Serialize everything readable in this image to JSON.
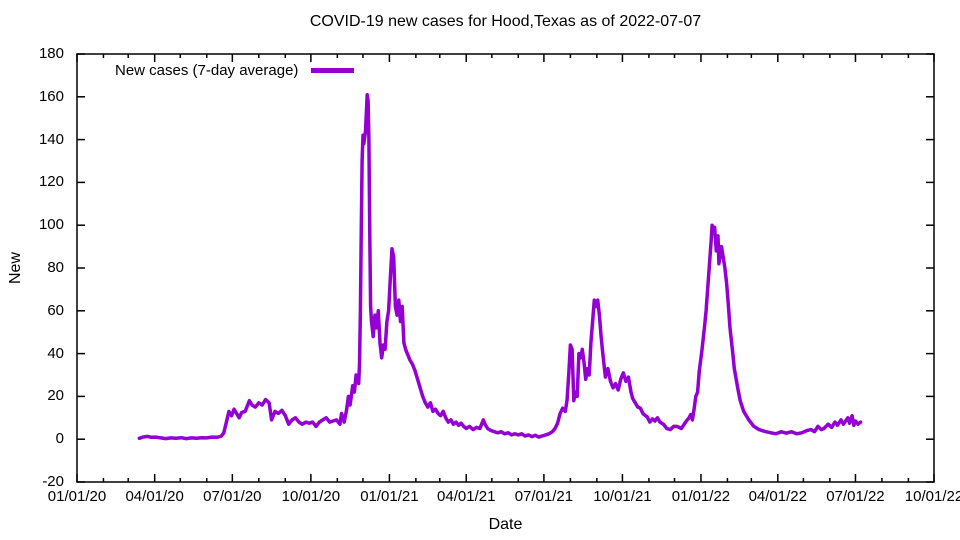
{
  "chart_data": {
    "type": "line",
    "title": "COVID-19 new cases for Hood,Texas as of 2022-07-07",
    "xlabel": "Date",
    "ylabel": "New",
    "legend_label": "New cases (7-day average)",
    "legend_position": "top-left",
    "grid": false,
    "line_color": "#9400d3",
    "axis_color": "#000000",
    "ylim": [
      -20,
      180
    ],
    "y_ticks": [
      -20,
      0,
      20,
      40,
      60,
      80,
      100,
      120,
      140,
      160,
      180
    ],
    "x_range": [
      "2020-01-01",
      "2022-10-01"
    ],
    "x_major_ticks": [
      "2020-01-01",
      "2020-04-01",
      "2020-07-01",
      "2020-10-01",
      "2021-01-01",
      "2021-04-01",
      "2021-07-01",
      "2021-10-01",
      "2022-01-01",
      "2022-04-01",
      "2022-07-01",
      "2022-10-01"
    ],
    "x_tick_labels": [
      "01/01/20",
      "04/01/20",
      "07/01/20",
      "10/01/20",
      "01/01/21",
      "04/01/21",
      "07/01/21",
      "10/01/21",
      "01/01/22",
      "04/01/22",
      "07/01/22",
      "10/01/22"
    ],
    "x_minor_tick_interval": "month",
    "series": [
      {
        "name": "New cases (7-day average)",
        "points": [
          [
            "2020-03-14",
            0.4
          ],
          [
            "2020-03-18",
            1.0
          ],
          [
            "2020-03-24",
            1.3
          ],
          [
            "2020-03-28",
            0.9
          ],
          [
            "2020-04-02",
            1.0
          ],
          [
            "2020-04-08",
            0.6
          ],
          [
            "2020-04-14",
            0.3
          ],
          [
            "2020-04-20",
            0.6
          ],
          [
            "2020-04-26",
            0.4
          ],
          [
            "2020-05-02",
            0.7
          ],
          [
            "2020-05-08",
            0.3
          ],
          [
            "2020-05-14",
            0.6
          ],
          [
            "2020-05-20",
            0.4
          ],
          [
            "2020-05-26",
            0.7
          ],
          [
            "2020-06-01",
            0.6
          ],
          [
            "2020-06-07",
            1.0
          ],
          [
            "2020-06-13",
            0.9
          ],
          [
            "2020-06-18",
            1.4
          ],
          [
            "2020-06-21",
            3
          ],
          [
            "2020-06-24",
            8
          ],
          [
            "2020-06-27",
            13
          ],
          [
            "2020-06-30",
            11
          ],
          [
            "2020-07-03",
            14
          ],
          [
            "2020-07-06",
            12
          ],
          [
            "2020-07-09",
            10
          ],
          [
            "2020-07-12",
            12.5
          ],
          [
            "2020-07-16",
            13
          ],
          [
            "2020-07-21",
            18
          ],
          [
            "2020-07-24",
            16
          ],
          [
            "2020-07-28",
            15
          ],
          [
            "2020-08-01",
            17
          ],
          [
            "2020-08-05",
            16
          ],
          [
            "2020-08-09",
            18.5
          ],
          [
            "2020-08-13",
            17
          ],
          [
            "2020-08-16",
            9
          ],
          [
            "2020-08-20",
            13
          ],
          [
            "2020-08-24",
            12
          ],
          [
            "2020-08-28",
            13.5
          ],
          [
            "2020-09-01",
            11
          ],
          [
            "2020-09-05",
            7
          ],
          [
            "2020-09-09",
            9
          ],
          [
            "2020-09-13",
            10
          ],
          [
            "2020-09-17",
            8
          ],
          [
            "2020-09-21",
            7
          ],
          [
            "2020-09-25",
            8
          ],
          [
            "2020-09-29",
            7.5
          ],
          [
            "2020-10-03",
            8
          ],
          [
            "2020-10-07",
            6
          ],
          [
            "2020-10-11",
            8
          ],
          [
            "2020-10-15",
            9
          ],
          [
            "2020-10-19",
            10
          ],
          [
            "2020-10-23",
            8
          ],
          [
            "2020-10-27",
            8.5
          ],
          [
            "2020-10-31",
            9
          ],
          [
            "2020-11-04",
            7
          ],
          [
            "2020-11-06",
            12
          ],
          [
            "2020-11-09",
            8
          ],
          [
            "2020-11-12",
            14
          ],
          [
            "2020-11-14",
            20
          ],
          [
            "2020-11-16",
            16
          ],
          [
            "2020-11-19",
            25
          ],
          [
            "2020-11-21",
            22
          ],
          [
            "2020-11-23",
            30
          ],
          [
            "2020-11-26",
            26
          ],
          [
            "2020-11-27",
            35
          ],
          [
            "2020-11-28",
            60
          ],
          [
            "2020-11-29",
            95
          ],
          [
            "2020-11-30",
            130
          ],
          [
            "2020-12-01",
            142
          ],
          [
            "2020-12-02",
            138
          ],
          [
            "2020-12-04",
            144
          ],
          [
            "2020-12-06",
            161
          ],
          [
            "2020-12-07",
            158
          ],
          [
            "2020-12-08",
            140
          ],
          [
            "2020-12-09",
            95
          ],
          [
            "2020-12-10",
            62
          ],
          [
            "2020-12-11",
            55
          ],
          [
            "2020-12-13",
            48
          ],
          [
            "2020-12-15",
            58
          ],
          [
            "2020-12-17",
            52
          ],
          [
            "2020-12-19",
            60
          ],
          [
            "2020-12-21",
            45
          ],
          [
            "2020-12-23",
            38
          ],
          [
            "2020-12-25",
            44
          ],
          [
            "2020-12-27",
            42
          ],
          [
            "2020-12-29",
            55
          ],
          [
            "2020-12-31",
            60
          ],
          [
            "2021-01-02",
            75
          ],
          [
            "2021-01-04",
            89
          ],
          [
            "2021-01-06",
            85
          ],
          [
            "2021-01-08",
            62
          ],
          [
            "2021-01-10",
            58
          ],
          [
            "2021-01-12",
            65
          ],
          [
            "2021-01-14",
            55
          ],
          [
            "2021-01-16",
            62
          ],
          [
            "2021-01-18",
            45
          ],
          [
            "2021-01-20",
            42
          ],
          [
            "2021-01-22",
            40
          ],
          [
            "2021-01-25",
            37
          ],
          [
            "2021-01-28",
            35
          ],
          [
            "2021-01-31",
            32
          ],
          [
            "2021-02-03",
            28
          ],
          [
            "2021-02-06",
            24
          ],
          [
            "2021-02-09",
            20
          ],
          [
            "2021-02-12",
            17
          ],
          [
            "2021-02-15",
            15
          ],
          [
            "2021-02-18",
            17
          ],
          [
            "2021-02-21",
            13
          ],
          [
            "2021-02-24",
            14
          ],
          [
            "2021-02-27",
            12
          ],
          [
            "2021-03-02",
            11
          ],
          [
            "2021-03-05",
            13
          ],
          [
            "2021-03-08",
            10
          ],
          [
            "2021-03-11",
            8
          ],
          [
            "2021-03-14",
            9
          ],
          [
            "2021-03-17",
            7
          ],
          [
            "2021-03-20",
            8
          ],
          [
            "2021-03-23",
            6.5
          ],
          [
            "2021-03-26",
            7.5
          ],
          [
            "2021-03-29",
            6
          ],
          [
            "2021-04-01",
            5
          ],
          [
            "2021-04-05",
            6
          ],
          [
            "2021-04-09",
            4.5
          ],
          [
            "2021-04-13",
            5.5
          ],
          [
            "2021-04-17",
            5
          ],
          [
            "2021-04-19",
            7
          ],
          [
            "2021-04-21",
            9
          ],
          [
            "2021-04-23",
            7
          ],
          [
            "2021-04-26",
            5
          ],
          [
            "2021-04-30",
            4
          ],
          [
            "2021-05-04",
            3.5
          ],
          [
            "2021-05-08",
            3
          ],
          [
            "2021-05-12",
            3.5
          ],
          [
            "2021-05-16",
            2.5
          ],
          [
            "2021-05-20",
            3
          ],
          [
            "2021-05-24",
            2
          ],
          [
            "2021-05-28",
            2.5
          ],
          [
            "2021-06-01",
            2
          ],
          [
            "2021-06-05",
            2.5
          ],
          [
            "2021-06-09",
            1.5
          ],
          [
            "2021-06-13",
            2
          ],
          [
            "2021-06-17",
            1.2
          ],
          [
            "2021-06-21",
            1.8
          ],
          [
            "2021-06-25",
            1
          ],
          [
            "2021-06-29",
            1.5
          ],
          [
            "2021-07-03",
            2
          ],
          [
            "2021-07-07",
            2.5
          ],
          [
            "2021-07-11",
            3.5
          ],
          [
            "2021-07-14",
            5
          ],
          [
            "2021-07-17",
            7.5
          ],
          [
            "2021-07-20",
            12
          ],
          [
            "2021-07-23",
            14.5
          ],
          [
            "2021-07-26",
            13
          ],
          [
            "2021-07-28",
            18
          ],
          [
            "2021-07-30",
            30
          ],
          [
            "2021-08-01",
            44
          ],
          [
            "2021-08-03",
            42
          ],
          [
            "2021-08-05",
            18
          ],
          [
            "2021-08-07",
            22
          ],
          [
            "2021-08-09",
            20
          ],
          [
            "2021-08-11",
            40
          ],
          [
            "2021-08-13",
            38
          ],
          [
            "2021-08-15",
            42
          ],
          [
            "2021-08-17",
            36
          ],
          [
            "2021-08-19",
            28
          ],
          [
            "2021-08-21",
            33
          ],
          [
            "2021-08-23",
            30
          ],
          [
            "2021-08-25",
            45
          ],
          [
            "2021-08-27",
            55
          ],
          [
            "2021-08-29",
            65
          ],
          [
            "2021-08-31",
            62
          ],
          [
            "2021-09-02",
            65
          ],
          [
            "2021-09-04",
            58
          ],
          [
            "2021-09-06",
            48
          ],
          [
            "2021-09-08",
            40
          ],
          [
            "2021-09-11",
            29
          ],
          [
            "2021-09-14",
            33
          ],
          [
            "2021-09-17",
            27
          ],
          [
            "2021-09-20",
            24
          ],
          [
            "2021-09-23",
            26
          ],
          [
            "2021-09-26",
            23
          ],
          [
            "2021-09-29",
            28
          ],
          [
            "2021-10-02",
            31
          ],
          [
            "2021-10-05",
            27
          ],
          [
            "2021-10-08",
            29
          ],
          [
            "2021-10-11",
            22
          ],
          [
            "2021-10-13",
            19
          ],
          [
            "2021-10-16",
            17
          ],
          [
            "2021-10-19",
            15
          ],
          [
            "2021-10-22",
            14.5
          ],
          [
            "2021-10-25",
            12
          ],
          [
            "2021-10-28",
            11
          ],
          [
            "2021-10-30",
            10.5
          ],
          [
            "2021-11-02",
            8
          ],
          [
            "2021-11-05",
            9.5
          ],
          [
            "2021-11-08",
            8.5
          ],
          [
            "2021-11-11",
            10
          ],
          [
            "2021-11-14",
            8
          ],
          [
            "2021-11-18",
            7
          ],
          [
            "2021-11-22",
            5
          ],
          [
            "2021-11-26",
            4.5
          ],
          [
            "2021-11-30",
            6
          ],
          [
            "2021-12-04",
            6
          ],
          [
            "2021-12-09",
            5
          ],
          [
            "2021-12-14",
            8
          ],
          [
            "2021-12-18",
            10
          ],
          [
            "2021-12-20",
            11.5
          ],
          [
            "2021-12-22",
            9
          ],
          [
            "2021-12-24",
            14
          ],
          [
            "2021-12-26",
            20
          ],
          [
            "2021-12-28",
            22
          ],
          [
            "2021-12-30",
            32
          ],
          [
            "2022-01-02",
            41
          ],
          [
            "2022-01-05",
            52
          ],
          [
            "2022-01-07",
            60
          ],
          [
            "2022-01-09",
            71
          ],
          [
            "2022-01-11",
            82
          ],
          [
            "2022-01-13",
            93
          ],
          [
            "2022-01-14",
            100
          ],
          [
            "2022-01-15",
            97
          ],
          [
            "2022-01-17",
            99
          ],
          [
            "2022-01-19",
            88
          ],
          [
            "2022-01-21",
            95
          ],
          [
            "2022-01-22",
            82
          ],
          [
            "2022-01-25",
            90
          ],
          [
            "2022-01-27",
            85
          ],
          [
            "2022-01-29",
            80
          ],
          [
            "2022-01-31",
            73
          ],
          [
            "2022-02-02",
            63
          ],
          [
            "2022-02-04",
            52
          ],
          [
            "2022-02-07",
            41
          ],
          [
            "2022-02-09",
            33
          ],
          [
            "2022-02-13",
            24
          ],
          [
            "2022-02-16",
            18
          ],
          [
            "2022-02-20",
            13
          ],
          [
            "2022-02-26",
            9
          ],
          [
            "2022-03-04",
            6
          ],
          [
            "2022-03-10",
            4.5
          ],
          [
            "2022-03-18",
            3.5
          ],
          [
            "2022-03-24",
            3
          ],
          [
            "2022-03-30",
            2.5
          ],
          [
            "2022-04-05",
            3.5
          ],
          [
            "2022-04-11",
            2.8
          ],
          [
            "2022-04-17",
            3.5
          ],
          [
            "2022-04-23",
            2.5
          ],
          [
            "2022-04-29",
            3
          ],
          [
            "2022-05-05",
            4
          ],
          [
            "2022-05-10",
            4.5
          ],
          [
            "2022-05-14",
            3.5
          ],
          [
            "2022-05-18",
            6
          ],
          [
            "2022-05-22",
            4.5
          ],
          [
            "2022-05-25",
            5
          ],
          [
            "2022-05-30",
            7
          ],
          [
            "2022-06-03",
            5.5
          ],
          [
            "2022-06-07",
            8
          ],
          [
            "2022-06-10",
            6.5
          ],
          [
            "2022-06-14",
            9
          ],
          [
            "2022-06-17",
            7
          ],
          [
            "2022-06-22",
            10
          ],
          [
            "2022-06-24",
            7.5
          ],
          [
            "2022-06-27",
            11
          ],
          [
            "2022-06-29",
            6.5
          ],
          [
            "2022-07-01",
            8.5
          ],
          [
            "2022-07-04",
            7
          ],
          [
            "2022-07-07",
            8
          ]
        ]
      }
    ]
  }
}
